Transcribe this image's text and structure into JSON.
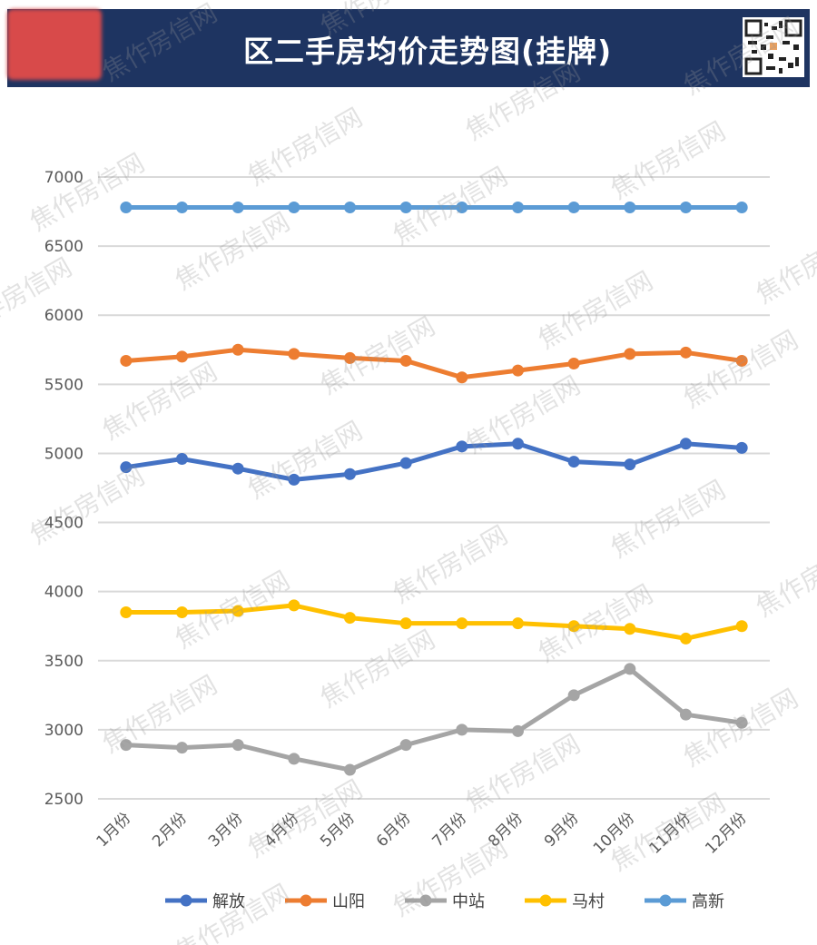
{
  "header": {
    "title": "区二手房均价走势图(挂牌)",
    "background": "#1e3461"
  },
  "watermark": "焦作房信网",
  "chart_data": {
    "type": "line",
    "title": "区二手房均价走势图(挂牌)",
    "categories": [
      "1月份",
      "2月份",
      "3月份",
      "4月份",
      "5月份",
      "6月份",
      "7月份",
      "8月份",
      "9月份",
      "10月份",
      "11月份",
      "12月份"
    ],
    "ylim": [
      2500,
      7000
    ],
    "yticks": [
      2500,
      3000,
      3500,
      4000,
      4500,
      5000,
      5500,
      6000,
      6500,
      7000
    ],
    "grid": true,
    "legend": "bottom",
    "series": [
      {
        "name": "解放",
        "color": "#4472c4",
        "values": [
          4900,
          4960,
          4890,
          4810,
          4850,
          4930,
          5050,
          5070,
          4940,
          4920,
          5070,
          5040
        ]
      },
      {
        "name": "山阳",
        "color": "#ed7d31",
        "values": [
          5670,
          5700,
          5750,
          5720,
          5690,
          5670,
          5550,
          5600,
          5650,
          5720,
          5730,
          5670
        ]
      },
      {
        "name": "中站",
        "color": "#a5a5a5",
        "values": [
          2890,
          2870,
          2890,
          2790,
          2710,
          2890,
          3000,
          2990,
          3250,
          3440,
          3110,
          3050
        ]
      },
      {
        "name": "马村",
        "color": "#ffc000",
        "values": [
          3850,
          3850,
          3860,
          3900,
          3810,
          3770,
          3770,
          3770,
          3750,
          3730,
          3660,
          3750
        ]
      },
      {
        "name": "高新",
        "color": "#5b9bd5",
        "values": [
          6780,
          6780,
          6780,
          6780,
          6780,
          6780,
          6780,
          6780,
          6780,
          6780,
          6780,
          6780
        ]
      }
    ]
  }
}
